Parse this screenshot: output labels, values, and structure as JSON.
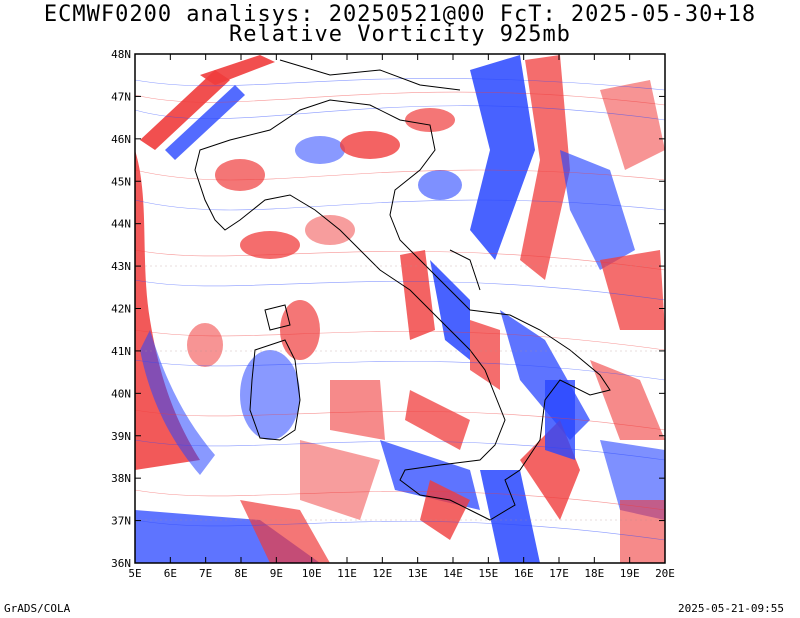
{
  "title": {
    "line1": "ECMWF0200 analisys: 20250521@00 FcT: 2025-05-30+18",
    "line2": "Relative Vorticity 925mb"
  },
  "axes": {
    "x_ticks": [
      "5E",
      "6E",
      "7E",
      "8E",
      "9E",
      "10E",
      "11E",
      "12E",
      "13E",
      "14E",
      "15E",
      "16E",
      "17E",
      "18E",
      "19E",
      "20E"
    ],
    "y_ticks": [
      "36N",
      "37N",
      "38N",
      "39N",
      "40N",
      "41N",
      "42N",
      "43N",
      "44N",
      "45N",
      "46N",
      "47N",
      "48N"
    ],
    "lon_range": [
      5,
      20
    ],
    "lat_range": [
      36,
      48
    ]
  },
  "colors": {
    "positive": "#f03c3c",
    "negative": "#2846ff",
    "coast": "#000000"
  },
  "footer": {
    "left": "GrADS/COLA",
    "right": "2025-05-21-09:55"
  }
}
